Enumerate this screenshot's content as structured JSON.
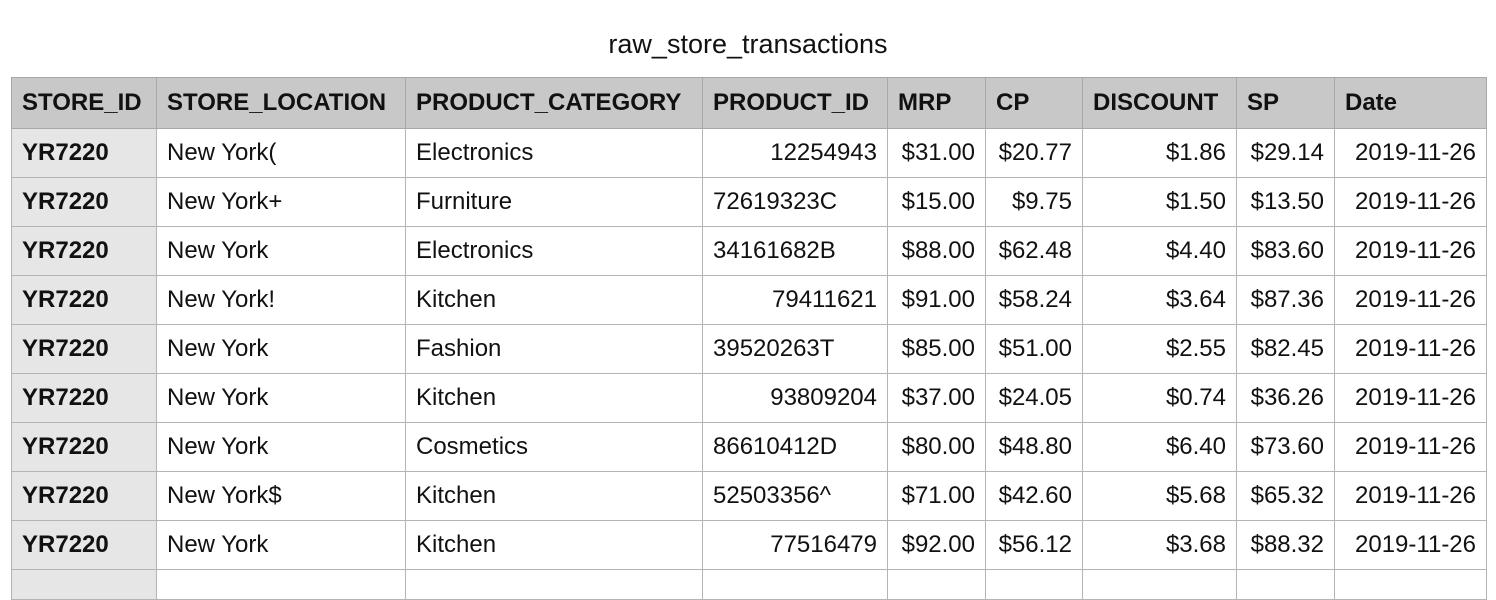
{
  "title": "raw_store_transactions",
  "columns": [
    "STORE_ID",
    "STORE_LOCATION",
    "PRODUCT_CATEGORY",
    "PRODUCT_ID",
    "MRP",
    "CP",
    "DISCOUNT",
    "SP",
    "Date"
  ],
  "rows": [
    [
      "YR7220",
      "New York(",
      "Electronics",
      "12254943",
      "$31.00",
      "$20.77",
      "$1.86",
      "$29.14",
      "2019-11-26"
    ],
    [
      "YR7220",
      "New York+",
      "Furniture",
      "72619323C",
      "$15.00",
      "$9.75",
      "$1.50",
      "$13.50",
      "2019-11-26"
    ],
    [
      "YR7220",
      "New York",
      "Electronics",
      "34161682B",
      "$88.00",
      "$62.48",
      "$4.40",
      "$83.60",
      "2019-11-26"
    ],
    [
      "YR7220",
      "New York!",
      "Kitchen",
      "79411621",
      "$91.00",
      "$58.24",
      "$3.64",
      "$87.36",
      "2019-11-26"
    ],
    [
      "YR7220",
      "New York",
      "Fashion",
      "39520263T",
      "$85.00",
      "$51.00",
      "$2.55",
      "$82.45",
      "2019-11-26"
    ],
    [
      "YR7220",
      "New York",
      "Kitchen",
      "93809204",
      "$37.00",
      "$24.05",
      "$0.74",
      "$36.26",
      "2019-11-26"
    ],
    [
      "YR7220",
      "New York",
      "Cosmetics",
      "86610412D",
      "$80.00",
      "$48.80",
      "$6.40",
      "$73.60",
      "2019-11-26"
    ],
    [
      "YR7220",
      "New York$",
      "Kitchen",
      "52503356^",
      "$71.00",
      "$42.60",
      "$5.68",
      "$65.32",
      "2019-11-26"
    ],
    [
      "YR7220",
      "New York",
      "Kitchen",
      "77516479",
      "$92.00",
      "$56.12",
      "$3.68",
      "$88.32",
      "2019-11-26"
    ]
  ]
}
